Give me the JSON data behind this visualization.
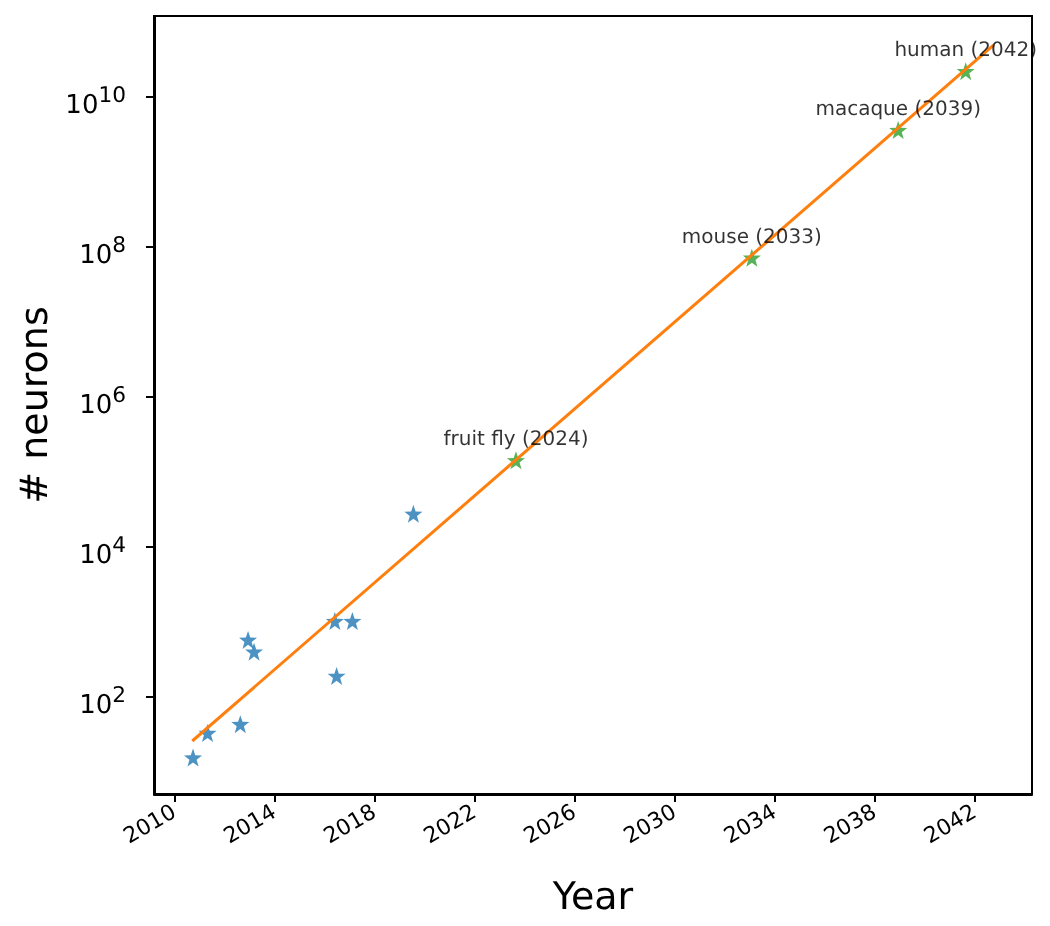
{
  "chart_data": {
    "type": "scatter",
    "xlabel": "Year",
    "ylabel": "# neurons",
    "log": "y",
    "grid": false,
    "marker": "star",
    "xlim": [
      2009.2,
      2044.3
    ],
    "ylim": [
      4.9,
      120000000000.0
    ],
    "xticks": [
      2010,
      2014,
      2018,
      2022,
      2026,
      2030,
      2034,
      2038,
      2042
    ],
    "yticks": [
      {
        "value": 100,
        "label": "10$^{2}$"
      },
      {
        "value": 10000,
        "label": "10$^{4}$"
      },
      {
        "value": 1000000,
        "label": "10$^{6}$"
      },
      {
        "value": 100000000,
        "label": "10$^{8}$"
      },
      {
        "value": 10000000000,
        "label": "10$^{10}$"
      }
    ],
    "series": [
      {
        "color": "#1f77b4",
        "x": [
          2010.76,
          2011.34,
          2012.65,
          2012.96,
          2013.2,
          2016.43,
          2016.5,
          2017.13,
          2019.57
        ],
        "values": [
          15,
          32,
          42,
          560,
          390,
          1000,
          185,
          1000,
          27000
        ]
      },
      {
        "type": "line",
        "marker": "none",
        "color": "#ff7f0e",
        "x": [
          2010.73,
          2042.76
        ],
        "values": [
          25,
          49000000000
        ]
      },
      {
        "color": "#2ca02c",
        "x": [
          2023.67,
          2033.1,
          2038.95,
          2041.65
        ],
        "values": [
          140000,
          71000000,
          3600000000,
          22000000000
        ]
      }
    ],
    "annotations": [
      {
        "text": "fruit fly (2024)",
        "x": 2023.67,
        "y": 140000
      },
      {
        "text": "mouse (2033)",
        "x": 2033.1,
        "y": 71000000
      },
      {
        "text": "macaque (2039)",
        "x": 2038.95,
        "y": 3600000000
      },
      {
        "text": "human (2042)",
        "x": 2041.65,
        "y": 22000000000
      }
    ]
  }
}
